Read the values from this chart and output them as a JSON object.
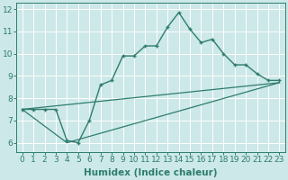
{
  "xlabel": "Humidex (Indice chaleur)",
  "background_color": "#cce8e8",
  "grid_color": "#ffffff",
  "line_color": "#2e7d6e",
  "xlim": [
    -0.5,
    23.5
  ],
  "ylim": [
    5.6,
    12.3
  ],
  "xticks": [
    0,
    1,
    2,
    3,
    4,
    5,
    6,
    7,
    8,
    9,
    10,
    11,
    12,
    13,
    14,
    15,
    16,
    17,
    18,
    19,
    20,
    21,
    22,
    23
  ],
  "yticks": [
    6,
    7,
    8,
    9,
    10,
    11,
    12
  ],
  "line1_x": [
    0,
    1,
    2,
    3,
    4,
    5,
    6,
    7,
    8,
    9,
    10,
    11,
    12,
    13,
    14,
    15,
    16,
    17,
    18,
    19,
    20,
    21,
    22,
    23
  ],
  "line1_y": [
    7.5,
    7.5,
    7.5,
    7.5,
    6.1,
    6.0,
    7.0,
    8.6,
    8.8,
    9.9,
    9.9,
    10.35,
    10.35,
    11.2,
    11.85,
    11.1,
    10.5,
    10.65,
    10.0,
    9.5,
    9.5,
    9.1,
    8.8,
    8.8
  ],
  "line2_x": [
    0,
    4,
    23
  ],
  "line2_y": [
    7.5,
    6.0,
    8.7
  ],
  "line3_x": [
    0,
    23
  ],
  "line3_y": [
    7.5,
    8.7
  ],
  "font_color": "#2e7d6e",
  "tick_fontsize": 6.5,
  "label_fontsize": 7.5
}
